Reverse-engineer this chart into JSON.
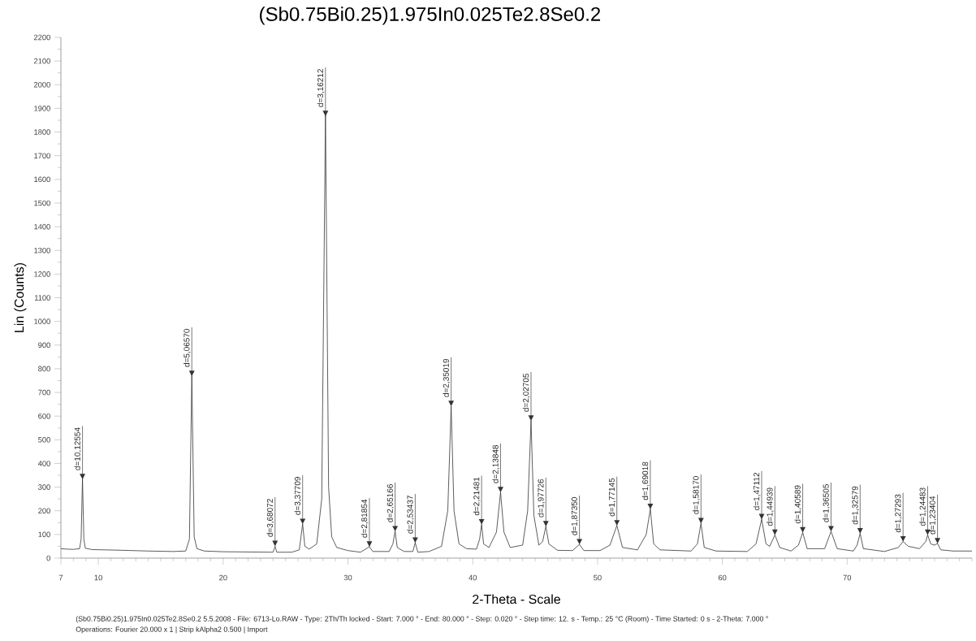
{
  "chart_data": {
    "type": "line",
    "title": "(Sb0.75Bi0.25)1.975In0.025Te2.8Se0.2",
    "xlabel": "2-Theta - Scale",
    "ylabel": "Lin (Counts)",
    "color": "#333333",
    "x": [
      7.0,
      7.5,
      8.0,
      8.5,
      8.62,
      8.73,
      8.84,
      8.95,
      9.5,
      10.5,
      12,
      14,
      16,
      17.0,
      17.3,
      17.49,
      17.68,
      17.9,
      18.5,
      20,
      24.0,
      24.16,
      24.3,
      25.5,
      26.1,
      26.37,
      26.55,
      26.9,
      27.5,
      27.9,
      28.2,
      28.45,
      28.7,
      29.1,
      30,
      31,
      31.72,
      32,
      33.3,
      33.6,
      33.78,
      33.95,
      34.5,
      35.2,
      35.39,
      35.6,
      36.5,
      37.5,
      38.0,
      38.27,
      38.5,
      38.9,
      39.5,
      40.3,
      40.55,
      40.71,
      40.87,
      41.3,
      41.9,
      42.23,
      42.5,
      43,
      44.0,
      44.4,
      44.67,
      44.9,
      45.3,
      45.6,
      45.86,
      46.1,
      46.8,
      48,
      48.55,
      48.9,
      50.2,
      51.0,
      51.55,
      52.0,
      53.2,
      53.9,
      54.23,
      54.5,
      55,
      57.5,
      58.0,
      58.29,
      58.55,
      59.5,
      62,
      62.7,
      63.15,
      63.5,
      63.8,
      64.21,
      64.6,
      65.5,
      66.1,
      66.44,
      66.8,
      68.2,
      68.71,
      69.2,
      70.5,
      70.8,
      71.04,
      71.3,
      73,
      74.1,
      74.48,
      74.9,
      75.8,
      76.3,
      76.45,
      76.7,
      77.0,
      77.24,
      77.5,
      78.5,
      80
    ],
    "values": [
      40,
      38,
      37,
      40,
      80,
      335,
      80,
      42,
      36,
      35,
      33,
      30,
      28,
      30,
      80,
      770,
      90,
      40,
      30,
      27,
      25,
      50,
      25,
      25,
      35,
      144,
      50,
      38,
      60,
      250,
      1870,
      300,
      90,
      45,
      32,
      25,
      48,
      28,
      28,
      60,
      113,
      45,
      28,
      28,
      65,
      25,
      28,
      50,
      200,
      642,
      200,
      60,
      40,
      38,
      80,
      142,
      60,
      45,
      110,
      278,
      110,
      45,
      55,
      200,
      580,
      180,
      55,
      70,
      134,
      60,
      33,
      32,
      58,
      32,
      32,
      55,
      138,
      45,
      35,
      100,
      207,
      60,
      35,
      30,
      60,
      147,
      45,
      30,
      28,
      60,
      164,
      60,
      50,
      98,
      45,
      30,
      55,
      108,
      40,
      40,
      113,
      40,
      30,
      55,
      104,
      40,
      28,
      45,
      70,
      50,
      40,
      70,
      98,
      60,
      55,
      62,
      35,
      30,
      30
    ],
    "xlim": [
      7,
      80
    ],
    "ylim": [
      0,
      2200
    ],
    "xticks": [
      7,
      10,
      20,
      30,
      40,
      50,
      60,
      70
    ],
    "yticks": [
      0,
      100,
      200,
      300,
      400,
      500,
      600,
      700,
      800,
      900,
      1000,
      1100,
      1200,
      1300,
      1400,
      1500,
      1600,
      1700,
      1800,
      1900,
      2000,
      2100,
      2200
    ],
    "annotations": [
      {
        "text": "d=10,12554",
        "x": 8.73,
        "y": 333
      },
      {
        "text": "d=5,06570",
        "x": 17.49,
        "y": 769
      },
      {
        "text": "d=3,68072",
        "x": 24.16,
        "y": 51
      },
      {
        "text": "d=3,37709",
        "x": 26.37,
        "y": 144
      },
      {
        "text": "d=3,16212",
        "x": 28.2,
        "y": 1867
      },
      {
        "text": "d=2,81854",
        "x": 31.72,
        "y": 48
      },
      {
        "text": "d=2,65166",
        "x": 33.78,
        "y": 113
      },
      {
        "text": "d=2,53437",
        "x": 35.39,
        "y": 65
      },
      {
        "text": "d=2,35019",
        "x": 38.27,
        "y": 642
      },
      {
        "text": "d=2,21481",
        "x": 40.71,
        "y": 142
      },
      {
        "text": "d=2,13848",
        "x": 42.23,
        "y": 278
      },
      {
        "text": "d=2,02705",
        "x": 44.67,
        "y": 580
      },
      {
        "text": "d=1,97726",
        "x": 45.86,
        "y": 134
      },
      {
        "text": "d=1,87350",
        "x": 48.55,
        "y": 58
      },
      {
        "text": "d=1,77145",
        "x": 51.55,
        "y": 138
      },
      {
        "text": "d=1,69018",
        "x": 54.23,
        "y": 207
      },
      {
        "text": "d=1,58170",
        "x": 58.29,
        "y": 147
      },
      {
        "text": "d=1,47112",
        "x": 63.15,
        "y": 164
      },
      {
        "text": "d=1,44939",
        "x": 64.21,
        "y": 98
      },
      {
        "text": "d=1,40589",
        "x": 66.44,
        "y": 108
      },
      {
        "text": "d=1,36505",
        "x": 68.71,
        "y": 113
      },
      {
        "text": "d=1,32579",
        "x": 71.04,
        "y": 104
      },
      {
        "text": "d=1,27293",
        "x": 74.48,
        "y": 70
      },
      {
        "text": "d=1,24483",
        "x": 76.45,
        "y": 98
      },
      {
        "text": "d=1,23404",
        "x": 77.24,
        "y": 62
      },
      "(Sb0.75Bi0.25)1.975In0.025Te2.8Se0.2  5.5.2008 - File: 6713-Lo.RAW - Type: 2Th/Th locked - Start: 7.000 ° - End: 80.000 ° - Step: 0.020 ° - Step time: 12. s - Temp.: 25 °C (Room) - Time Started: 0 s - 2-Theta: 7.000 °",
      "Operations: Fourier 20.000 x 1 | Strip kAlpha2 0.500 | Import"
    ]
  }
}
